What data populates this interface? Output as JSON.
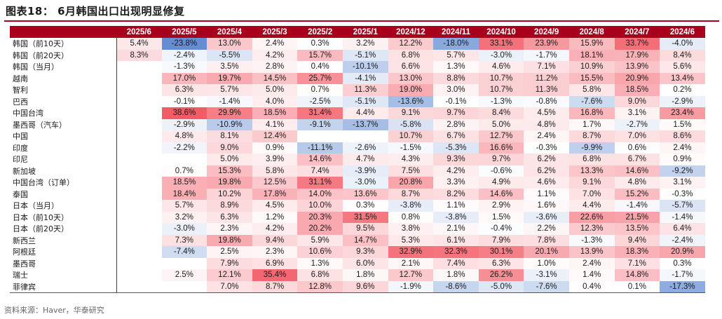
{
  "title": "图表18： 6月韩国出口出现明显修复",
  "source": "资料来源：Haver，华泰研究",
  "columns": [
    "2025/6",
    "2025/5",
    "2025/4",
    "2025/3",
    "2025/2",
    "2025/1",
    "2024/12",
    "2024/11",
    "2024/10",
    "2024/9",
    "2024/8",
    "2024/7",
    "2024/6"
  ],
  "rows": [
    {
      "label": "韩国（前10天）",
      "values": [
        5.4,
        -23.8,
        13.0,
        2.4,
        0.3,
        3.2,
        12.2,
        -18.0,
        33.1,
        23.9,
        15.9,
        33.7,
        -4.0
      ]
    },
    {
      "label": "韩国（前20天）",
      "values": [
        8.3,
        -2.4,
        -5.5,
        4.2,
        15.7,
        -5.1,
        6.8,
        5.7,
        -3.0,
        -1.7,
        18.1,
        17.9,
        8.4
      ]
    },
    {
      "label": "韩国（当月）",
      "values": [
        null,
        -1.3,
        3.5,
        2.8,
        0.4,
        -10.1,
        6.6,
        1.3,
        4.6,
        7.1,
        10.9,
        13.9,
        5.6
      ]
    },
    {
      "label": "越南",
      "values": [
        null,
        17.0,
        19.7,
        14.5,
        25.7,
        -4.1,
        13.0,
        8.8,
        10.7,
        11.2,
        15.5,
        20.9,
        13.4
      ]
    },
    {
      "label": "智利",
      "values": [
        null,
        6.3,
        5.7,
        5.0,
        0.7,
        11.3,
        19.0,
        3.0,
        10.7,
        11.3,
        5.8,
        18.5,
        0.2
      ]
    },
    {
      "label": "巴西",
      "values": [
        null,
        -0.1,
        -1.4,
        4.0,
        -2.5,
        -5.1,
        -13.6,
        -0.1,
        -1.3,
        -0.8,
        -7.6,
        9.0,
        -2.9
      ]
    },
    {
      "label": "中国台湾",
      "values": [
        null,
        38.6,
        29.9,
        18.5,
        31.4,
        4.4,
        9.1,
        9.7,
        8.4,
        4.5,
        16.8,
        3.1,
        23.4
      ]
    },
    {
      "label": "墨西哥（汽车）",
      "values": [
        null,
        -2.9,
        -10.9,
        4.1,
        -9.1,
        -13.7,
        -5.8,
        2.8,
        5.0,
        4.8,
        1.7,
        -2.7,
        1.5
      ]
    },
    {
      "label": "中国",
      "values": [
        null,
        4.8,
        8.1,
        12.4,
        null,
        null,
        10.7,
        6.7,
        12.7,
        2.4,
        8.7,
        7.0,
        8.6
      ]
    },
    {
      "label": "印度",
      "values": [
        null,
        -2.2,
        9.0,
        0.9,
        -11.1,
        -2.6,
        -1.5,
        -5.3,
        16.6,
        -0.3,
        -9.9,
        0.6,
        2.4
      ]
    },
    {
      "label": "印尼",
      "values": [
        null,
        null,
        5.0,
        3.9,
        14.6,
        4.7,
        4.3,
        9.3,
        9.7,
        6.2,
        6.8,
        6.7,
        0.9
      ]
    },
    {
      "label": "新加坡",
      "values": [
        null,
        0.7,
        15.3,
        5.8,
        7.4,
        -3.9,
        7.5,
        4.2,
        -0.6,
        6.2,
        13.3,
        14.6,
        -9.2
      ]
    },
    {
      "label": "中国台湾（订单）",
      "values": [
        null,
        18.5,
        19.8,
        12.5,
        31.1,
        -3.0,
        20.8,
        3.3,
        4.9,
        4.6,
        9.1,
        4.8,
        3.1
      ]
    },
    {
      "label": "泰国",
      "values": [
        null,
        18.4,
        10.2,
        17.8,
        14.0,
        13.6,
        8.7,
        8.2,
        14.6,
        1.1,
        7.0,
        15.2,
        -0.3
      ]
    },
    {
      "label": "日本（当月）",
      "values": [
        null,
        5.7,
        8.9,
        4.5,
        10.0,
        0.3,
        -3.8,
        1.1,
        2.9,
        1.6,
        4.4,
        -1.4,
        -5.7
      ]
    },
    {
      "label": "日本（前10天）",
      "values": [
        null,
        3.2,
        6.3,
        1.2,
        20.3,
        31.5,
        0.8,
        -3.8,
        1.5,
        -3.6,
        22.6,
        21.5,
        -1.4
      ]
    },
    {
      "label": "日本（前20天）",
      "values": [
        null,
        -3.0,
        2.3,
        4.2,
        20.2,
        9.5,
        3.8,
        2.1,
        -0.4,
        2.2,
        12.3,
        13.5,
        6.4
      ]
    },
    {
      "label": "新西兰",
      "values": [
        null,
        7.3,
        19.8,
        9.4,
        5.9,
        14.7,
        5.3,
        6.1,
        7.9,
        7.8,
        -1.3,
        9.4,
        -2.4
      ]
    },
    {
      "label": "阿根廷",
      "values": [
        null,
        -7.4,
        2.5,
        2.3,
        10.6,
        9.3,
        32.9,
        32.3,
        30.1,
        20.1,
        13.9,
        18.3,
        20.9
      ]
    },
    {
      "label": "墨西哥",
      "values": [
        null,
        null,
        7.9,
        6.9,
        1.3,
        6.0,
        2.1,
        7.4,
        6.3,
        1.0,
        2.4,
        7.1,
        0.3
      ]
    },
    {
      "label": "瑞士",
      "values": [
        null,
        2.5,
        12.1,
        35.4,
        6.8,
        1.8,
        12.7,
        1.8,
        26.2,
        -3.1,
        1.4,
        14.8,
        -1.7
      ]
    },
    {
      "label": "菲律宾",
      "values": [
        null,
        null,
        7.0,
        8.7,
        12.8,
        9.6,
        -1.9,
        -8.6,
        -5.0,
        -7.6,
        0.4,
        0.1,
        -17.3
      ]
    }
  ],
  "colors": {
    "header_bg": "#a8001c",
    "pos_max": "#f2535f",
    "neg_max": "#5a86d0"
  }
}
